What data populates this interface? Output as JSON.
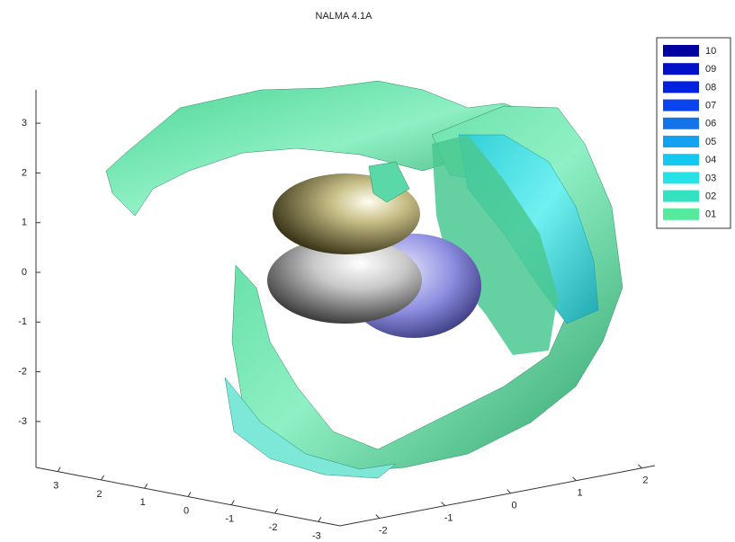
{
  "figure": {
    "title": "NALMA 4.1A",
    "z_ticks": [
      3,
      2,
      1,
      0,
      -1,
      -2,
      -3
    ],
    "x_ticks": [
      3,
      2,
      1,
      0,
      -1,
      -2,
      -3
    ],
    "y_ticks": [
      -2,
      -1,
      0,
      1,
      2
    ],
    "legend": [
      {
        "label": "10",
        "color": "#0000a0"
      },
      {
        "label": "09",
        "color": "#0010c8"
      },
      {
        "label": "08",
        "color": "#0022e0"
      },
      {
        "label": "07",
        "color": "#0a44f0"
      },
      {
        "label": "06",
        "color": "#1274e8"
      },
      {
        "label": "05",
        "color": "#12a2f0"
      },
      {
        "label": "04",
        "color": "#14c8f0"
      },
      {
        "label": "03",
        "color": "#24e2e6"
      },
      {
        "label": "02",
        "color": "#34e2c2"
      },
      {
        "label": "01",
        "color": "#56ea9e"
      }
    ]
  }
}
